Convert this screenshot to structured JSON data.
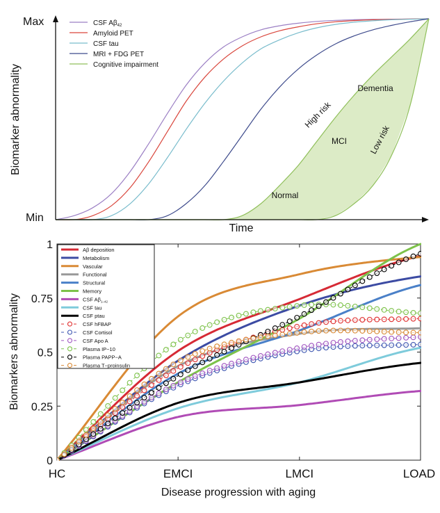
{
  "chart_data": [
    {
      "type": "line",
      "title": "",
      "xlabel": "Time",
      "ylabel": "Biomarker abnormality",
      "y_tick_labels": [
        "Min",
        "Max"
      ],
      "xlim": [
        0,
        1
      ],
      "ylim": [
        0,
        1
      ],
      "legend": "top-left",
      "grid": false,
      "x": [
        0,
        0.05,
        0.1,
        0.15,
        0.2,
        0.25,
        0.3,
        0.35,
        0.4,
        0.45,
        0.5,
        0.55,
        0.6,
        0.65,
        0.7,
        0.75,
        0.8,
        0.85,
        0.9,
        0.95,
        1.0
      ],
      "series": [
        {
          "name": "CSF Aβ",
          "sub": "42",
          "color": "#9b7fc4",
          "values": [
            0,
            0.02,
            0.06,
            0.13,
            0.24,
            0.38,
            0.53,
            0.67,
            0.78,
            0.86,
            0.91,
            0.945,
            0.965,
            0.978,
            0.987,
            0.992,
            0.995,
            0.997,
            0.998,
            0.999,
            1.0
          ]
        },
        {
          "name": "Amyloid PET",
          "sub": "",
          "color": "#d9453b",
          "values": [
            0,
            0,
            0.02,
            0.07,
            0.16,
            0.29,
            0.44,
            0.59,
            0.71,
            0.8,
            0.865,
            0.91,
            0.94,
            0.96,
            0.975,
            0.985,
            0.991,
            0.995,
            0.997,
            0.999,
            1.0
          ]
        },
        {
          "name": "CSF tau",
          "sub": "",
          "color": "#79bccc",
          "values": [
            0,
            0,
            0,
            0.02,
            0.08,
            0.18,
            0.31,
            0.45,
            0.58,
            0.69,
            0.78,
            0.85,
            0.895,
            0.93,
            0.955,
            0.972,
            0.983,
            0.99,
            0.995,
            0.998,
            1.0
          ]
        },
        {
          "name": "MRI + FDG PET",
          "sub": "",
          "color": "#3e4b8c",
          "values": [
            0,
            0,
            0,
            0,
            0,
            0,
            0.02,
            0.08,
            0.17,
            0.29,
            0.42,
            0.55,
            0.66,
            0.75,
            0.82,
            0.875,
            0.915,
            0.945,
            0.967,
            0.985,
            1.0
          ]
        },
        {
          "name": "Cognitive impairment",
          "sub": "",
          "color": "#8fbf5a",
          "fill": "#dcebc6",
          "values_high_risk": [
            0,
            0,
            0,
            0,
            0,
            0,
            0,
            0,
            0,
            0,
            0.02,
            0.08,
            0.17,
            0.27,
            0.39,
            0.51,
            0.62,
            0.72,
            0.81,
            0.9,
            1.0
          ],
          "values_low_risk": [
            0,
            0,
            0,
            0,
            0,
            0,
            0,
            0,
            0,
            0,
            0,
            0,
            0,
            0,
            0,
            0.02,
            0.08,
            0.17,
            0.32,
            0.57,
            1.0
          ]
        }
      ],
      "annotations": [
        "Normal",
        "MCI",
        "Dementia",
        "High risk",
        "Low risk"
      ]
    },
    {
      "type": "line",
      "title": "",
      "xlabel": "Disease progression with aging",
      "ylabel": "Biomarkers abnormality",
      "categories": [
        "HC",
        "EMCI",
        "LMCI",
        "LOAD"
      ],
      "x": [
        0,
        0.333,
        0.667,
        1.0
      ],
      "xlim": [
        0,
        1
      ],
      "ylim": [
        0,
        1
      ],
      "y_ticks": [
        0,
        0.25,
        0.5,
        0.75,
        1
      ],
      "y_tick_labels": [
        "0",
        "0.25",
        "0.5",
        "0.75",
        "1"
      ],
      "legend": "top-left",
      "grid": false,
      "series": [
        {
          "name": "Aβ deposition",
          "sub": "",
          "color": "#d62a35",
          "style": "solid",
          "values": [
            0,
            0.505,
            0.745,
            0.945
          ]
        },
        {
          "name": "Metabolism",
          "sub": "",
          "color": "#3c4ba3",
          "style": "solid",
          "values": [
            0,
            0.46,
            0.715,
            0.85
          ]
        },
        {
          "name": "Vascular",
          "sub": "",
          "color": "#d98a35",
          "style": "solid",
          "values": [
            0,
            0.665,
            0.86,
            0.94
          ]
        },
        {
          "name": "Functional",
          "sub": "",
          "color": "#999999",
          "style": "solid",
          "values": [
            0,
            0.435,
            0.585,
            0.61
          ]
        },
        {
          "name": "Structural",
          "sub": "",
          "color": "#4a80c8",
          "style": "solid",
          "values": [
            0,
            0.4,
            0.6,
            0.81
          ]
        },
        {
          "name": "Memory",
          "sub": "",
          "color": "#7dc24a",
          "style": "solid",
          "values": [
            0,
            0.36,
            0.655,
            1.0
          ]
        },
        {
          "name": "CSF Aβ",
          "sub": "1–42",
          "color": "#b04bb5",
          "style": "solid",
          "values": [
            0,
            0.2,
            0.255,
            0.32
          ]
        },
        {
          "name": "CSF tau",
          "sub": "",
          "color": "#7ecbdb",
          "style": "solid",
          "values": [
            0,
            0.24,
            0.36,
            0.52
          ]
        },
        {
          "name": "CSF ptau",
          "sub": "",
          "color": "#000000",
          "style": "solid",
          "values": [
            0,
            0.265,
            0.36,
            0.45
          ]
        },
        {
          "name": "CSF hFBAP",
          "sub": "",
          "color": "#e03030",
          "style": "dashed-circle",
          "values": [
            0,
            0.425,
            0.62,
            0.655
          ]
        },
        {
          "name": "CSF Cortisol",
          "sub": "",
          "color": "#3c55b0",
          "style": "dashed-circle",
          "values": [
            0,
            0.345,
            0.505,
            0.535
          ]
        },
        {
          "name": "CSF Apo A",
          "sub": "",
          "color": "#a055c0",
          "style": "dashed-circle",
          "values": [
            0,
            0.355,
            0.52,
            0.57
          ]
        },
        {
          "name": "Plasma IP−10",
          "sub": "",
          "color": "#7dc24a",
          "style": "dashed-circle",
          "values": [
            0,
            0.55,
            0.715,
            0.68
          ]
        },
        {
          "name": "Plasma PAPP−A",
          "sub": "",
          "color": "#000000",
          "style": "dashed-circle",
          "values": [
            0,
            0.39,
            0.665,
            0.955
          ]
        },
        {
          "name": "Plasma T−proinsulin",
          "sub": "",
          "color": "#d98a35",
          "style": "dashed-circle",
          "values": [
            0,
            0.455,
            0.59,
            0.59
          ]
        }
      ]
    }
  ]
}
